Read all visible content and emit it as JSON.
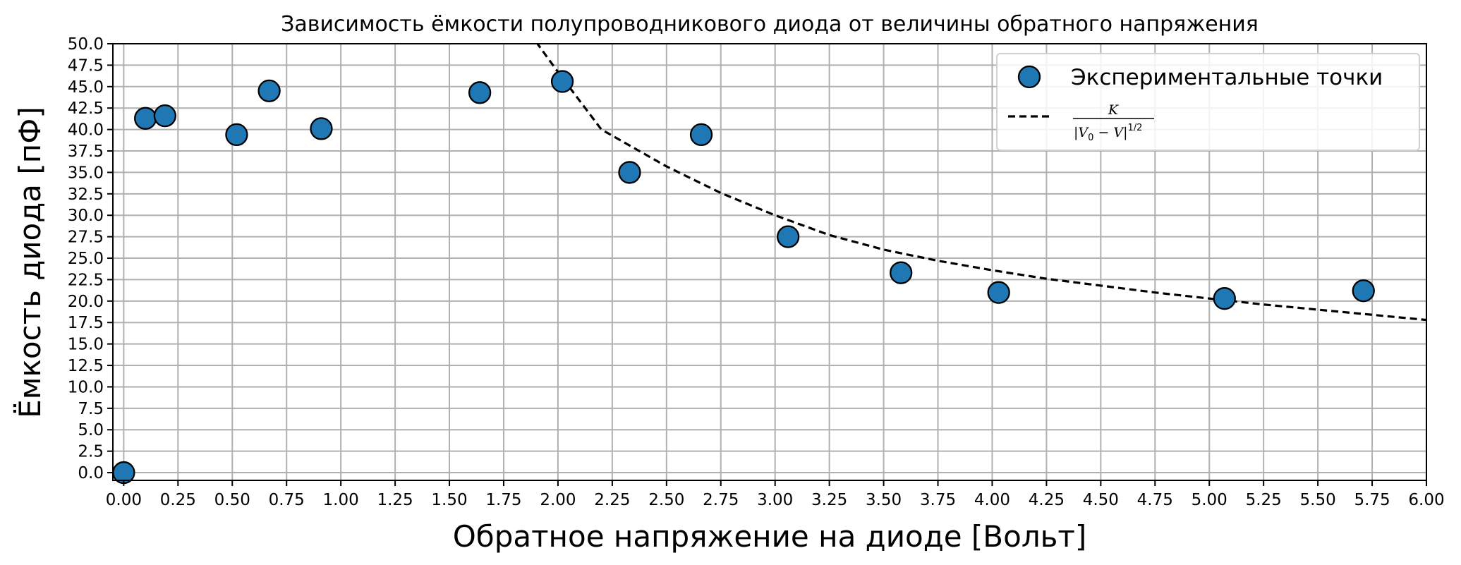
{
  "chart_data": {
    "type": "scatter",
    "title": "Зависимость ёмкости полупроводникового диода от величины обратного напряжения",
    "xlabel": "Обратное напряжение на диоде [Вольт]",
    "ylabel": "Ёмкость диода [пФ]",
    "xlim": [
      -0.05,
      6.0
    ],
    "ylim": [
      -0.9,
      50.0
    ],
    "x_ticks": [
      0,
      0.25,
      0.5,
      0.75,
      1.0,
      1.25,
      1.5,
      1.75,
      2.0,
      2.25,
      2.5,
      2.75,
      3.0,
      3.25,
      3.5,
      3.75,
      4.0,
      4.25,
      4.5,
      4.75,
      5.0,
      5.25,
      5.5,
      5.75,
      6.0
    ],
    "y_ticks": [
      0,
      2.5,
      5,
      7.5,
      10,
      12.5,
      15,
      17.5,
      20,
      22.5,
      25,
      27.5,
      30,
      32.5,
      35,
      37.5,
      40,
      42.5,
      45,
      47.5,
      50
    ],
    "grid": true,
    "legend_position": "top-right",
    "series": [
      {
        "name": "Экспериментальные точки",
        "kind": "scatter",
        "color": "#1f77b4",
        "points": [
          [
            0.0,
            0.0
          ],
          [
            0.1,
            41.3
          ],
          [
            0.19,
            41.6
          ],
          [
            0.52,
            39.4
          ],
          [
            0.67,
            44.5
          ],
          [
            0.91,
            40.1
          ],
          [
            1.64,
            44.3
          ],
          [
            2.02,
            45.6
          ],
          [
            2.33,
            35.0
          ],
          [
            2.66,
            39.4
          ],
          [
            3.06,
            27.5
          ],
          [
            3.58,
            23.3
          ],
          [
            4.03,
            21.0
          ],
          [
            5.07,
            20.3
          ],
          [
            5.71,
            21.2
          ]
        ]
      },
      {
        "kind": "fit",
        "style": "dashed",
        "color": "#000000",
        "legend_label": {
          "numerator": "K",
          "denominator_left": "|V",
          "denominator_sub": "0",
          "denominator_right": " − V|",
          "denominator_sup": "1/2"
        },
        "points": [
          [
            1.9,
            50.2
          ],
          [
            2.0,
            46.7
          ],
          [
            2.2,
            40.0
          ],
          [
            2.5,
            35.7
          ],
          [
            2.75,
            32.6
          ],
          [
            3.0,
            30.0
          ],
          [
            3.25,
            27.7
          ],
          [
            3.5,
            26.0
          ],
          [
            3.75,
            24.7
          ],
          [
            4.0,
            23.6
          ],
          [
            4.25,
            22.6
          ],
          [
            4.5,
            21.8
          ],
          [
            4.75,
            21.0
          ],
          [
            5.0,
            20.3
          ],
          [
            5.25,
            19.6
          ],
          [
            5.5,
            19.0
          ],
          [
            5.75,
            18.4
          ],
          [
            6.0,
            17.8
          ]
        ]
      }
    ]
  }
}
